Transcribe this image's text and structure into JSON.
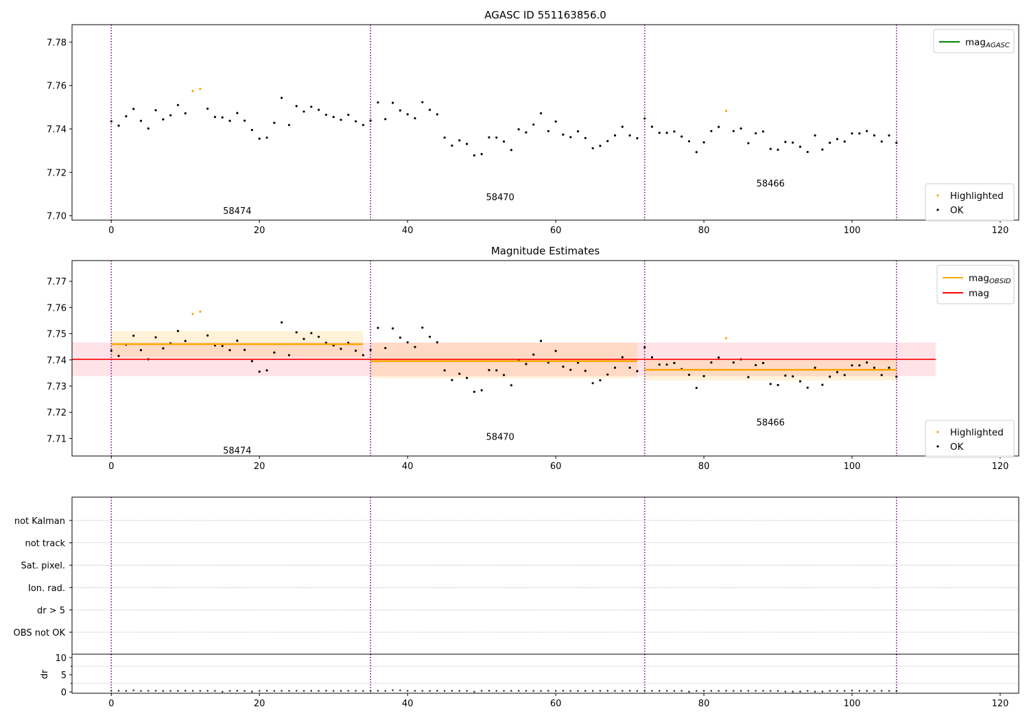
{
  "chart_data": [
    {
      "type": "scatter",
      "title": "AGASC ID 551163856.0",
      "xlim": [
        -5.3,
        122.5
      ],
      "ylim": [
        7.698,
        7.788
      ],
      "xticks": [
        "0",
        "20",
        "40",
        "60",
        "80",
        "100",
        "120"
      ],
      "yticks": [
        "7.70",
        "7.72",
        "7.74",
        "7.76",
        "7.78"
      ],
      "obs_boundaries": [
        0,
        35,
        72,
        106
      ],
      "obs_labels": [
        {
          "text": "58474",
          "x": 17,
          "y": 7.7025
        },
        {
          "text": "58470",
          "x": 52.5,
          "y": 7.7088
        },
        {
          "text": "58466",
          "x": 89,
          "y": 7.715
        }
      ],
      "legend_top": [
        {
          "name": "mag",
          "sub": "AGASC",
          "color": "#008000"
        }
      ],
      "legend_bottom": [
        {
          "name": "Highlighted",
          "color": "#ffa500"
        },
        {
          "name": "OK",
          "color": "#000000"
        }
      ],
      "ok_x": [
        0,
        1,
        2,
        3,
        4,
        5,
        6,
        7,
        8,
        9,
        10,
        13,
        14,
        15,
        16,
        17,
        18,
        19,
        20,
        21,
        22,
        23,
        24,
        25,
        26,
        27,
        28,
        29,
        30,
        31,
        32,
        33,
        34,
        35,
        36,
        37,
        38,
        39,
        40,
        41,
        42,
        43,
        44,
        45,
        46,
        47,
        48,
        49,
        50,
        51,
        52,
        53,
        54,
        55,
        56,
        57,
        58,
        59,
        60,
        61,
        62,
        63,
        64,
        65,
        66,
        67,
        68,
        69,
        70,
        71,
        72,
        73,
        74,
        75,
        76,
        77,
        78,
        79,
        80,
        81,
        82,
        84,
        85,
        86,
        87,
        88,
        89,
        90,
        91,
        92,
        93,
        94,
        95,
        96,
        97,
        98,
        99,
        100,
        101,
        102,
        103,
        104,
        105,
        106
      ],
      "ok_y": [
        7.7435,
        7.7415,
        7.7458,
        7.7492,
        7.7437,
        7.7402,
        7.7486,
        7.7444,
        7.7463,
        7.751,
        7.7472,
        7.7493,
        7.7455,
        7.7453,
        7.7437,
        7.7473,
        7.7438,
        7.7395,
        7.7355,
        7.736,
        7.7428,
        7.7543,
        7.7418,
        7.7505,
        7.748,
        7.7502,
        7.7488,
        7.7465,
        7.7455,
        7.7442,
        7.7465,
        7.7435,
        7.7418,
        7.7438,
        7.7522,
        7.7445,
        7.752,
        7.7485,
        7.7467,
        7.7449,
        7.7523,
        7.7488,
        7.7467,
        7.736,
        7.7323,
        7.7347,
        7.7331,
        7.7278,
        7.7284,
        7.7361,
        7.736,
        7.7342,
        7.7303,
        7.7398,
        7.7384,
        7.742,
        7.7472,
        7.739,
        7.7434,
        7.7374,
        7.7362,
        7.7389,
        7.7358,
        7.7311,
        7.7322,
        7.7344,
        7.737,
        7.741,
        7.737,
        7.7357,
        7.7448,
        7.741,
        7.7382,
        7.7382,
        7.7388,
        7.7365,
        7.7343,
        7.7293,
        7.7338,
        7.739,
        7.7409,
        7.739,
        7.7402,
        7.7334,
        7.738,
        7.7388,
        7.7308,
        7.7304,
        7.734,
        7.7337,
        7.7318,
        7.7294,
        7.737,
        7.7305,
        7.7336,
        7.7353,
        7.7342,
        7.7379,
        7.7379,
        7.739,
        7.737,
        7.7342,
        7.737,
        7.7336
      ],
      "highlighted_x": [
        11,
        12,
        83
      ],
      "highlighted_y": [
        7.7575,
        7.7584,
        7.7483
      ]
    },
    {
      "type": "scatter",
      "title": "Magnitude Estimates",
      "xlim": [
        -5.3,
        122.5
      ],
      "ylim": [
        7.7033,
        7.7779
      ],
      "xticks": [
        "0",
        "20",
        "40",
        "60",
        "80",
        "100",
        "120"
      ],
      "yticks": [
        "7.71",
        "7.72",
        "7.73",
        "7.74",
        "7.75",
        "7.76",
        "7.77"
      ],
      "obs_boundaries": [
        0,
        35,
        72,
        106
      ],
      "obs_labels": [
        {
          "text": "58474",
          "x": 17,
          "y": 7.7055
        },
        {
          "text": "58470",
          "x": 52.5,
          "y": 7.7108
        },
        {
          "text": "58466",
          "x": 89,
          "y": 7.7162
        }
      ],
      "mag": {
        "value": 7.7402,
        "band": [
          7.7338,
          7.7466
        ],
        "x_range": [
          -5.3,
          111.3
        ],
        "color": "#ff0000",
        "band_color": "#ffc0cb"
      },
      "mag_obsid": [
        {
          "x": [
            0,
            34
          ],
          "value": 7.746,
          "band": [
            7.741,
            7.751
          ]
        },
        {
          "x": [
            35,
            71
          ],
          "value": 7.7395,
          "band": [
            7.733,
            7.7465
          ]
        },
        {
          "x": [
            72,
            106
          ],
          "value": 7.7362,
          "band": [
            7.7322,
            7.7402
          ]
        }
      ],
      "mag_obsid_color": "#ffa500",
      "legend_top": [
        {
          "name": "mag",
          "sub": "OBSID",
          "color": "#ffa500"
        },
        {
          "name": "mag",
          "sub": "",
          "color": "#ff0000"
        }
      ],
      "legend_bottom": [
        {
          "name": "Highlighted",
          "color": "#ffa500"
        },
        {
          "name": "OK",
          "color": "#000000"
        }
      ]
    },
    {
      "type": "scatter",
      "categories": [
        "not Kalman",
        "not track",
        "Sat. pixel.",
        "Ion. rad.",
        "dr > 5",
        "OBS not OK"
      ],
      "obs_boundaries": [
        0,
        35,
        72,
        106
      ],
      "xlim": [
        -5.3,
        122.5
      ],
      "grid": true
    },
    {
      "type": "scatter",
      "ylabel": "dr",
      "xlim": [
        -5.3,
        122.5
      ],
      "ylim": [
        -0.4,
        11
      ],
      "xticks": [
        "0",
        "20",
        "40",
        "60",
        "80",
        "100",
        "120"
      ],
      "yticks": [
        "0",
        "5",
        "10"
      ],
      "obs_boundaries": [
        0,
        35,
        72,
        106
      ],
      "dr_y": [
        0.35,
        0.32,
        0.3,
        0.45,
        0.3,
        0.3,
        0.34,
        0.28,
        0.3,
        0.31,
        0.33,
        0.3,
        0.3,
        0.32,
        0.3,
        0.05,
        0.3,
        0.33,
        0.3,
        0.08,
        0.3,
        0.34,
        0.3,
        0.31,
        0.3,
        0.32,
        0.3,
        0.31,
        0.3,
        0.33,
        0.3,
        0.31,
        0.3,
        0.32,
        0.3,
        0.3,
        0.33,
        0.3,
        0.5,
        0.45,
        0.3,
        0.31,
        0.3,
        0.3,
        0.33,
        0.3,
        0.31,
        0.3,
        0.32,
        0.04,
        0.3,
        0.33,
        0.3,
        0.3,
        0.31,
        0.3,
        0.32,
        0.3,
        0.3,
        0.31,
        0.3,
        0.33,
        0.3,
        0.3,
        0.31,
        0.3,
        0.3,
        0.32,
        0.3,
        0.3,
        0.33,
        0.3,
        0.31,
        0.3,
        0.3,
        0.32,
        0.3,
        0.3,
        0.06,
        0.3,
        0.31,
        0.3,
        0.3,
        0.33,
        0.3,
        0.31,
        0.3,
        0.3,
        0.32,
        0.3,
        0.3,
        0.1,
        0.07,
        0.12,
        0.3,
        0.1,
        0.12,
        0.3,
        0.31,
        0.3,
        0.38,
        0.3,
        0.31,
        0.3,
        0.3,
        0.3,
        0.25
      ]
    }
  ]
}
